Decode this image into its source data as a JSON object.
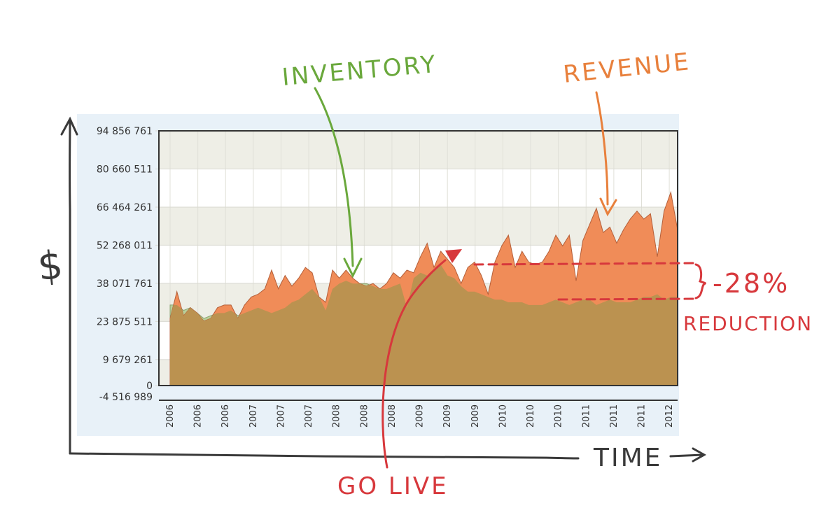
{
  "chart_data": {
    "type": "area",
    "y_ticks": [
      "94 856 761",
      "80 660 511",
      "66 464 261",
      "52 268 011",
      "38 071 761",
      "23 875 511",
      "9 679 261",
      "0",
      "-4 516 989"
    ],
    "y_tick_values": [
      94856761,
      80660511,
      66464261,
      52268011,
      38071761,
      23875511,
      9679261,
      0,
      -4516989
    ],
    "ylim": [
      -4516989,
      94856761
    ],
    "x_ticks": [
      "2006",
      "2006",
      "2006",
      "2007",
      "2007",
      "2007",
      "2008",
      "2008",
      "2008",
      "2009",
      "2009",
      "2009",
      "2010",
      "2010",
      "2010",
      "2011",
      "2011",
      "2011",
      "2012"
    ],
    "grid": true,
    "series": [
      {
        "name": "REVENUE",
        "color": "#f08c58",
        "values": [
          25000000,
          35000000,
          26000000,
          29000000,
          27000000,
          24000000,
          25000000,
          29000000,
          30000000,
          30000000,
          25000000,
          30000000,
          33000000,
          34000000,
          36000000,
          43000000,
          36000000,
          41000000,
          37000000,
          40000000,
          44000000,
          42000000,
          33000000,
          31000000,
          43000000,
          40000000,
          43000000,
          40000000,
          38000000,
          37000000,
          38000000,
          36000000,
          38000000,
          42000000,
          40000000,
          43000000,
          42000000,
          48000000,
          53000000,
          44000000,
          50000000,
          47000000,
          44000000,
          38000000,
          44000000,
          46000000,
          41000000,
          34000000,
          46000000,
          52000000,
          56000000,
          44000000,
          50000000,
          46000000,
          45000000,
          46000000,
          50000000,
          56000000,
          52000000,
          56000000,
          39000000,
          54000000,
          60000000,
          66000000,
          57000000,
          59000000,
          53000000,
          58000000,
          62000000,
          65000000,
          62000000,
          64000000,
          48000000,
          65000000,
          72000000,
          58000000
        ]
      },
      {
        "name": "INVENTORY",
        "color": "#b8d09a",
        "values": [
          30000000,
          30000000,
          28000000,
          29000000,
          27000000,
          25000000,
          26000000,
          27000000,
          27000000,
          28000000,
          26000000,
          27000000,
          28000000,
          29000000,
          28000000,
          27000000,
          28000000,
          29000000,
          31000000,
          32000000,
          34000000,
          36000000,
          33000000,
          28000000,
          36000000,
          38000000,
          39000000,
          38000000,
          38000000,
          38000000,
          37000000,
          36000000,
          36000000,
          37000000,
          38000000,
          29000000,
          40000000,
          42000000,
          41000000,
          43000000,
          45000000,
          41000000,
          40000000,
          37000000,
          35000000,
          35000000,
          34000000,
          33000000,
          32000000,
          32000000,
          31000000,
          31000000,
          31000000,
          30000000,
          30000000,
          30000000,
          31000000,
          32000000,
          31000000,
          30000000,
          31000000,
          32000000,
          32000000,
          30000000,
          31000000,
          32000000,
          31000000,
          31000000,
          31000000,
          32000000,
          33000000,
          33000000,
          34000000,
          32000000,
          33000000,
          33000000
        ]
      }
    ]
  },
  "annotations": {
    "inventory": "INVENTORY",
    "revenue": "REVENUE",
    "go_live": "GO LIVE",
    "reduction_pct": "-28%",
    "reduction_label": "REDUCTION",
    "time": "TIME",
    "dollar": "$"
  },
  "colors": {
    "revenue": "#f08c58",
    "inventory": "#b8d09a",
    "overlap": "#bb9250",
    "green_ink": "#6aa83c",
    "orange_ink": "#e8803c",
    "red_ink": "#d7383c",
    "ink": "#333333"
  }
}
